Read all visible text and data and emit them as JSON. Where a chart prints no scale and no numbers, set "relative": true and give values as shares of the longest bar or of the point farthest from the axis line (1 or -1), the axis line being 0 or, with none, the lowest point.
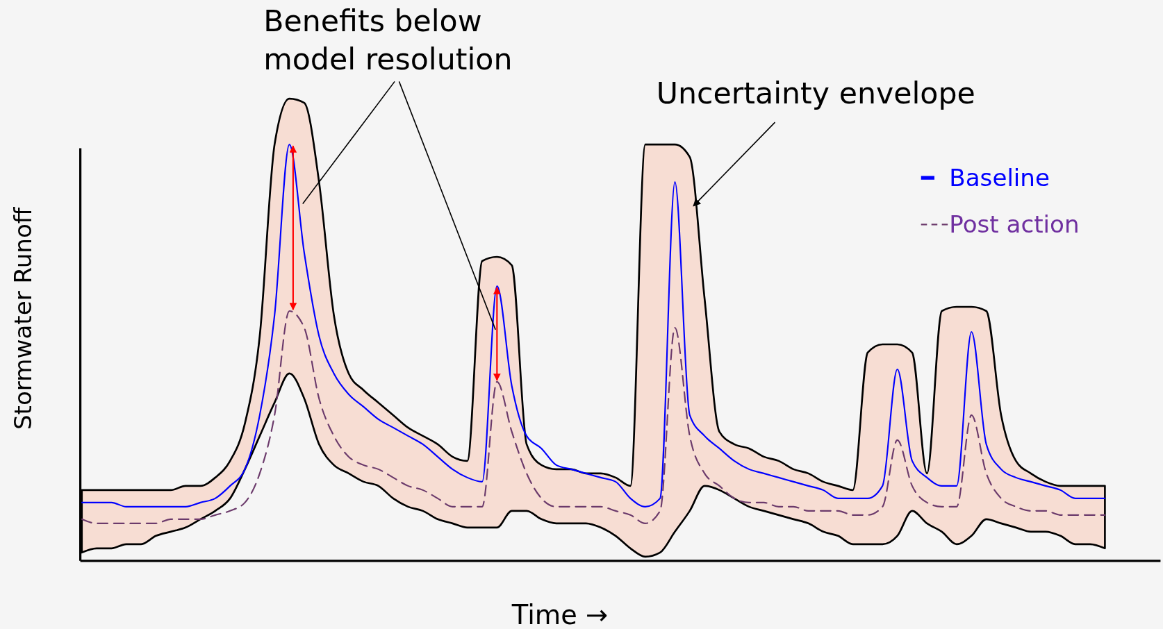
{
  "chart_data": {
    "type": "line",
    "relative": true,
    "xlabel": "Time →",
    "ylabel": "Stormwater Runoff",
    "legend": "top right",
    "line_style": "solid",
    "annotations": [
      "Benefits below model resolution",
      "Uncertainty envelope"
    ],
    "categories": [
      null,
      null,
      null,
      null,
      null,
      null,
      null,
      null,
      null,
      null,
      null,
      null,
      null,
      null,
      null,
      null,
      null,
      null,
      null,
      null,
      null,
      null,
      null,
      null,
      null,
      null,
      null,
      null,
      null,
      null,
      null,
      null,
      null,
      null,
      null,
      null,
      null,
      null,
      null,
      null,
      null,
      null,
      null,
      null,
      null,
      null,
      null,
      null,
      null,
      null,
      null,
      null,
      null,
      null,
      null,
      null,
      null,
      null,
      null,
      null,
      null,
      null,
      null,
      null,
      null,
      null,
      null,
      null,
      null,
      null
    ],
    "series": [
      {
        "name": "Baseline",
        "color": "#0000ff",
        "values": [
          0.14,
          0.14,
          0.14,
          0.13,
          0.13,
          0.13,
          0.13,
          0.13,
          0.14,
          0.15,
          0.18,
          0.22,
          0.35,
          0.59,
          1.0,
          0.74,
          0.54,
          0.45,
          0.4,
          0.37,
          0.34,
          0.32,
          0.3,
          0.28,
          0.25,
          0.22,
          0.2,
          0.19,
          0.66,
          0.42,
          0.3,
          0.27,
          0.23,
          0.22,
          0.21,
          0.2,
          0.19,
          0.15,
          0.13,
          0.15,
          0.91,
          0.35,
          0.3,
          0.27,
          0.24,
          0.22,
          0.21,
          0.2,
          0.19,
          0.18,
          0.17,
          0.15,
          0.15,
          0.15,
          0.18,
          0.46,
          0.24,
          0.2,
          0.18,
          0.18,
          0.55,
          0.28,
          0.22,
          0.2,
          0.19,
          0.18,
          0.17,
          0.15,
          0.15,
          0.15
        ],
        "upper": [
          0.17,
          0.17,
          0.17,
          0.17,
          0.17,
          0.17,
          0.17,
          0.18,
          0.18,
          0.2,
          0.24,
          0.33,
          0.54,
          1.0,
          1.11,
          1.1,
          0.91,
          0.59,
          0.45,
          0.41,
          0.38,
          0.35,
          0.32,
          0.3,
          0.28,
          0.25,
          0.24,
          0.72,
          0.73,
          0.71,
          0.28,
          0.23,
          0.22,
          0.22,
          0.21,
          0.21,
          0.2,
          0.18,
          1.0,
          1.0,
          1.0,
          0.97,
          0.63,
          0.31,
          0.28,
          0.27,
          0.25,
          0.24,
          0.22,
          0.21,
          0.19,
          0.18,
          0.17,
          0.5,
          0.52,
          0.52,
          0.5,
          0.21,
          0.6,
          0.61,
          0.61,
          0.6,
          0.35,
          0.24,
          0.21,
          0.19,
          0.18,
          0.18,
          0.18,
          0.18
        ],
        "lower": [
          0.02,
          0.03,
          0.03,
          0.04,
          0.04,
          0.06,
          0.07,
          0.08,
          0.1,
          0.12,
          0.15,
          0.22,
          0.3,
          0.38,
          0.45,
          0.39,
          0.28,
          0.23,
          0.21,
          0.19,
          0.18,
          0.15,
          0.13,
          0.12,
          0.1,
          0.09,
          0.08,
          0.08,
          0.08,
          0.12,
          0.12,
          0.1,
          0.09,
          0.09,
          0.09,
          0.08,
          0.06,
          0.03,
          0.01,
          0.02,
          0.07,
          0.12,
          0.18,
          0.17,
          0.15,
          0.13,
          0.12,
          0.11,
          0.1,
          0.09,
          0.07,
          0.06,
          0.04,
          0.04,
          0.04,
          0.06,
          0.12,
          0.09,
          0.07,
          0.04,
          0.06,
          0.1,
          0.09,
          0.08,
          0.07,
          0.07,
          0.06,
          0.04,
          0.04,
          0.03
        ]
      },
      {
        "name": "Post action",
        "color": "#6b3a6b",
        "line_style": "dashed",
        "values": [
          0.1,
          0.09,
          0.09,
          0.09,
          0.09,
          0.09,
          0.1,
          0.1,
          0.1,
          0.11,
          0.12,
          0.14,
          0.21,
          0.35,
          0.6,
          0.56,
          0.39,
          0.3,
          0.25,
          0.23,
          0.22,
          0.2,
          0.18,
          0.17,
          0.15,
          0.13,
          0.13,
          0.13,
          0.43,
          0.31,
          0.21,
          0.15,
          0.13,
          0.13,
          0.13,
          0.13,
          0.12,
          0.11,
          0.09,
          0.12,
          0.56,
          0.3,
          0.21,
          0.18,
          0.15,
          0.14,
          0.14,
          0.13,
          0.13,
          0.12,
          0.12,
          0.12,
          0.11,
          0.11,
          0.13,
          0.29,
          0.18,
          0.14,
          0.13,
          0.13,
          0.35,
          0.21,
          0.15,
          0.13,
          0.12,
          0.12,
          0.11,
          0.11,
          0.11,
          0.11
        ]
      }
    ]
  }
}
